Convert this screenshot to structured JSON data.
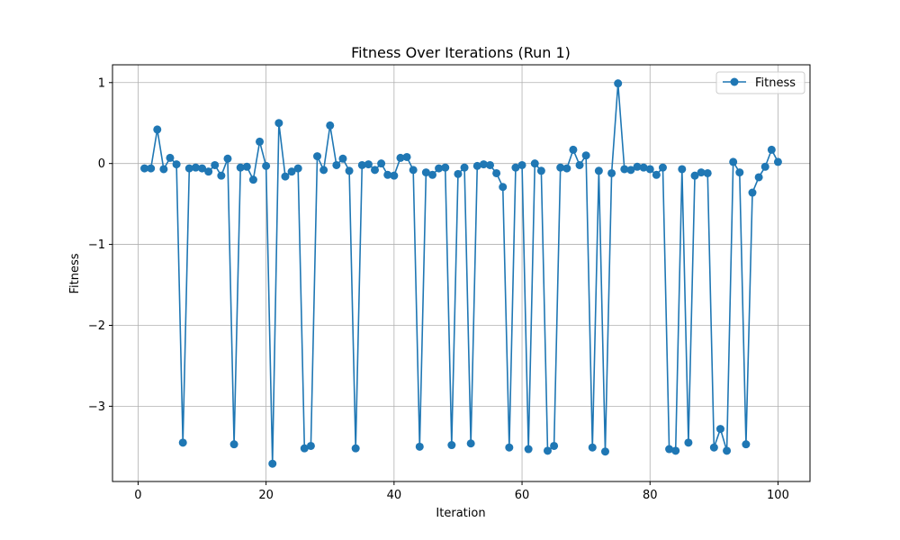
{
  "chart_data": {
    "type": "line",
    "title": "Fitness Over Iterations (Run 1)",
    "xlabel": "Iteration",
    "ylabel": "Fitness",
    "xlim": [
      -4,
      105
    ],
    "ylim": [
      -3.93,
      1.22
    ],
    "xticks": [
      0,
      20,
      40,
      60,
      80,
      100
    ],
    "yticks": [
      -3,
      -2,
      -1,
      0,
      1
    ],
    "ytick_labels": [
      "−3",
      "−2",
      "−1",
      "0",
      "1"
    ],
    "grid": true,
    "legend": "top-right",
    "colors": {
      "line": "#1f77b4"
    },
    "series": [
      {
        "name": "Fitness",
        "x": [
          1,
          2,
          3,
          4,
          5,
          6,
          7,
          8,
          9,
          10,
          11,
          12,
          13,
          14,
          15,
          16,
          17,
          18,
          19,
          20,
          21,
          22,
          23,
          24,
          25,
          26,
          27,
          28,
          29,
          30,
          31,
          32,
          33,
          34,
          35,
          36,
          37,
          38,
          39,
          40,
          41,
          42,
          43,
          44,
          45,
          46,
          47,
          48,
          49,
          50,
          51,
          52,
          53,
          54,
          55,
          56,
          57,
          58,
          59,
          60,
          61,
          62,
          63,
          64,
          65,
          66,
          67,
          68,
          69,
          70,
          71,
          72,
          73,
          74,
          75,
          76,
          77,
          78,
          79,
          80,
          81,
          82,
          83,
          84,
          85,
          86,
          87,
          88,
          89,
          90,
          91,
          92,
          93,
          94,
          95,
          96,
          97,
          98,
          99,
          100
        ],
        "y": [
          -0.06,
          -0.06,
          0.42,
          -0.07,
          0.07,
          -0.01,
          -3.45,
          -0.06,
          -0.05,
          -0.06,
          -0.1,
          -0.02,
          -0.15,
          0.06,
          -3.47,
          -0.05,
          -0.04,
          -0.2,
          0.27,
          -0.03,
          -3.71,
          0.5,
          -0.16,
          -0.1,
          -0.06,
          -3.52,
          -3.49,
          0.09,
          -0.08,
          0.47,
          -0.02,
          0.06,
          -0.09,
          -3.52,
          -0.02,
          -0.01,
          -0.08,
          0.0,
          -0.14,
          -0.15,
          0.07,
          0.08,
          -0.08,
          -3.5,
          -0.11,
          -0.14,
          -0.06,
          -0.05,
          -3.48,
          -0.13,
          -0.05,
          -3.46,
          -0.03,
          -0.01,
          -0.02,
          -0.12,
          -0.29,
          -3.51,
          -0.05,
          -0.02,
          -3.53,
          0.0,
          -0.09,
          -3.55,
          -3.49,
          -0.05,
          -0.06,
          0.17,
          -0.02,
          0.1,
          -3.51,
          -0.09,
          -3.56,
          -0.12,
          0.99,
          -0.07,
          -0.08,
          -0.04,
          -0.05,
          -0.07,
          -0.14,
          -0.05,
          -3.53,
          -3.55,
          -0.07,
          -3.45,
          -0.15,
          -0.11,
          -0.12,
          -3.51,
          -3.28,
          -3.55,
          0.02,
          -0.11,
          -3.47,
          -0.36,
          -0.17,
          -0.04,
          0.17,
          0.02
        ]
      }
    ]
  }
}
